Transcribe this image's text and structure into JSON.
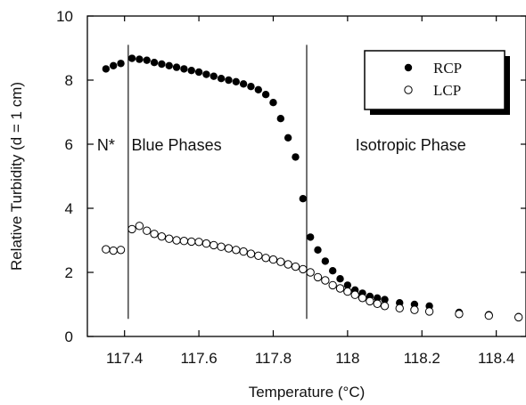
{
  "chart_data": {
    "type": "scatter",
    "xlabel": "Temperature  (°C)",
    "ylabel": "Relative Turbidity  (d = 1 cm)",
    "xlim": [
      117.3,
      118.48
    ],
    "ylim": [
      0,
      10
    ],
    "xticks": [
      117.4,
      117.6,
      117.8,
      118,
      118.2,
      118.4
    ],
    "xtick_labels": [
      "117.4",
      "117.6",
      "117.8",
      "118",
      "118.2",
      "118.4"
    ],
    "yticks": [
      0,
      2,
      4,
      6,
      8,
      10
    ],
    "ytick_labels": [
      "0",
      "2",
      "4",
      "6",
      "8",
      "10"
    ],
    "grid": false,
    "legend_position": "top-right",
    "phase_boundaries": [
      117.41,
      117.89
    ],
    "regions": [
      {
        "label": "N*",
        "x": 117.35,
        "y": 5.8
      },
      {
        "label": "Blue Phases",
        "x": 117.54,
        "y": 5.8
      },
      {
        "label": "Isotropic Phase",
        "x": 118.17,
        "y": 5.8
      }
    ],
    "series": [
      {
        "name": "RCP",
        "marker": "filled-circle",
        "color": "#000000",
        "x": [
          117.35,
          117.37,
          117.39,
          117.42,
          117.44,
          117.46,
          117.48,
          117.5,
          117.52,
          117.54,
          117.56,
          117.58,
          117.6,
          117.62,
          117.64,
          117.66,
          117.68,
          117.7,
          117.72,
          117.74,
          117.76,
          117.78,
          117.8,
          117.82,
          117.84,
          117.86,
          117.88,
          117.9,
          117.92,
          117.94,
          117.96,
          117.98,
          118.0,
          118.02,
          118.04,
          118.06,
          118.08,
          118.1,
          118.14,
          118.18,
          118.22,
          118.3,
          118.38,
          118.46
        ],
        "y": [
          8.35,
          8.45,
          8.52,
          8.68,
          8.65,
          8.62,
          8.55,
          8.5,
          8.45,
          8.4,
          8.35,
          8.3,
          8.25,
          8.18,
          8.12,
          8.05,
          8.0,
          7.95,
          7.88,
          7.8,
          7.7,
          7.55,
          7.3,
          6.8,
          6.2,
          5.6,
          4.3,
          3.1,
          2.7,
          2.35,
          2.05,
          1.8,
          1.6,
          1.45,
          1.35,
          1.25,
          1.2,
          1.15,
          1.05,
          1.0,
          0.95,
          0.75,
          0.68,
          0.62
        ]
      },
      {
        "name": "LCP",
        "marker": "open-circle",
        "color": "#000000",
        "x": [
          117.35,
          117.37,
          117.39,
          117.42,
          117.44,
          117.46,
          117.48,
          117.5,
          117.52,
          117.54,
          117.56,
          117.58,
          117.6,
          117.62,
          117.64,
          117.66,
          117.68,
          117.7,
          117.72,
          117.74,
          117.76,
          117.78,
          117.8,
          117.82,
          117.84,
          117.86,
          117.88,
          117.9,
          117.92,
          117.94,
          117.96,
          117.98,
          118.0,
          118.02,
          118.04,
          118.06,
          118.08,
          118.1,
          118.14,
          118.18,
          118.22,
          118.3,
          118.38,
          118.46
        ],
        "y": [
          2.72,
          2.68,
          2.7,
          3.35,
          3.45,
          3.3,
          3.2,
          3.12,
          3.05,
          3.0,
          2.98,
          2.96,
          2.95,
          2.9,
          2.85,
          2.8,
          2.75,
          2.7,
          2.65,
          2.58,
          2.52,
          2.45,
          2.4,
          2.33,
          2.25,
          2.18,
          2.1,
          2.0,
          1.85,
          1.75,
          1.6,
          1.5,
          1.4,
          1.3,
          1.2,
          1.1,
          1.02,
          0.95,
          0.88,
          0.83,
          0.78,
          0.7,
          0.65,
          0.6
        ]
      }
    ]
  }
}
